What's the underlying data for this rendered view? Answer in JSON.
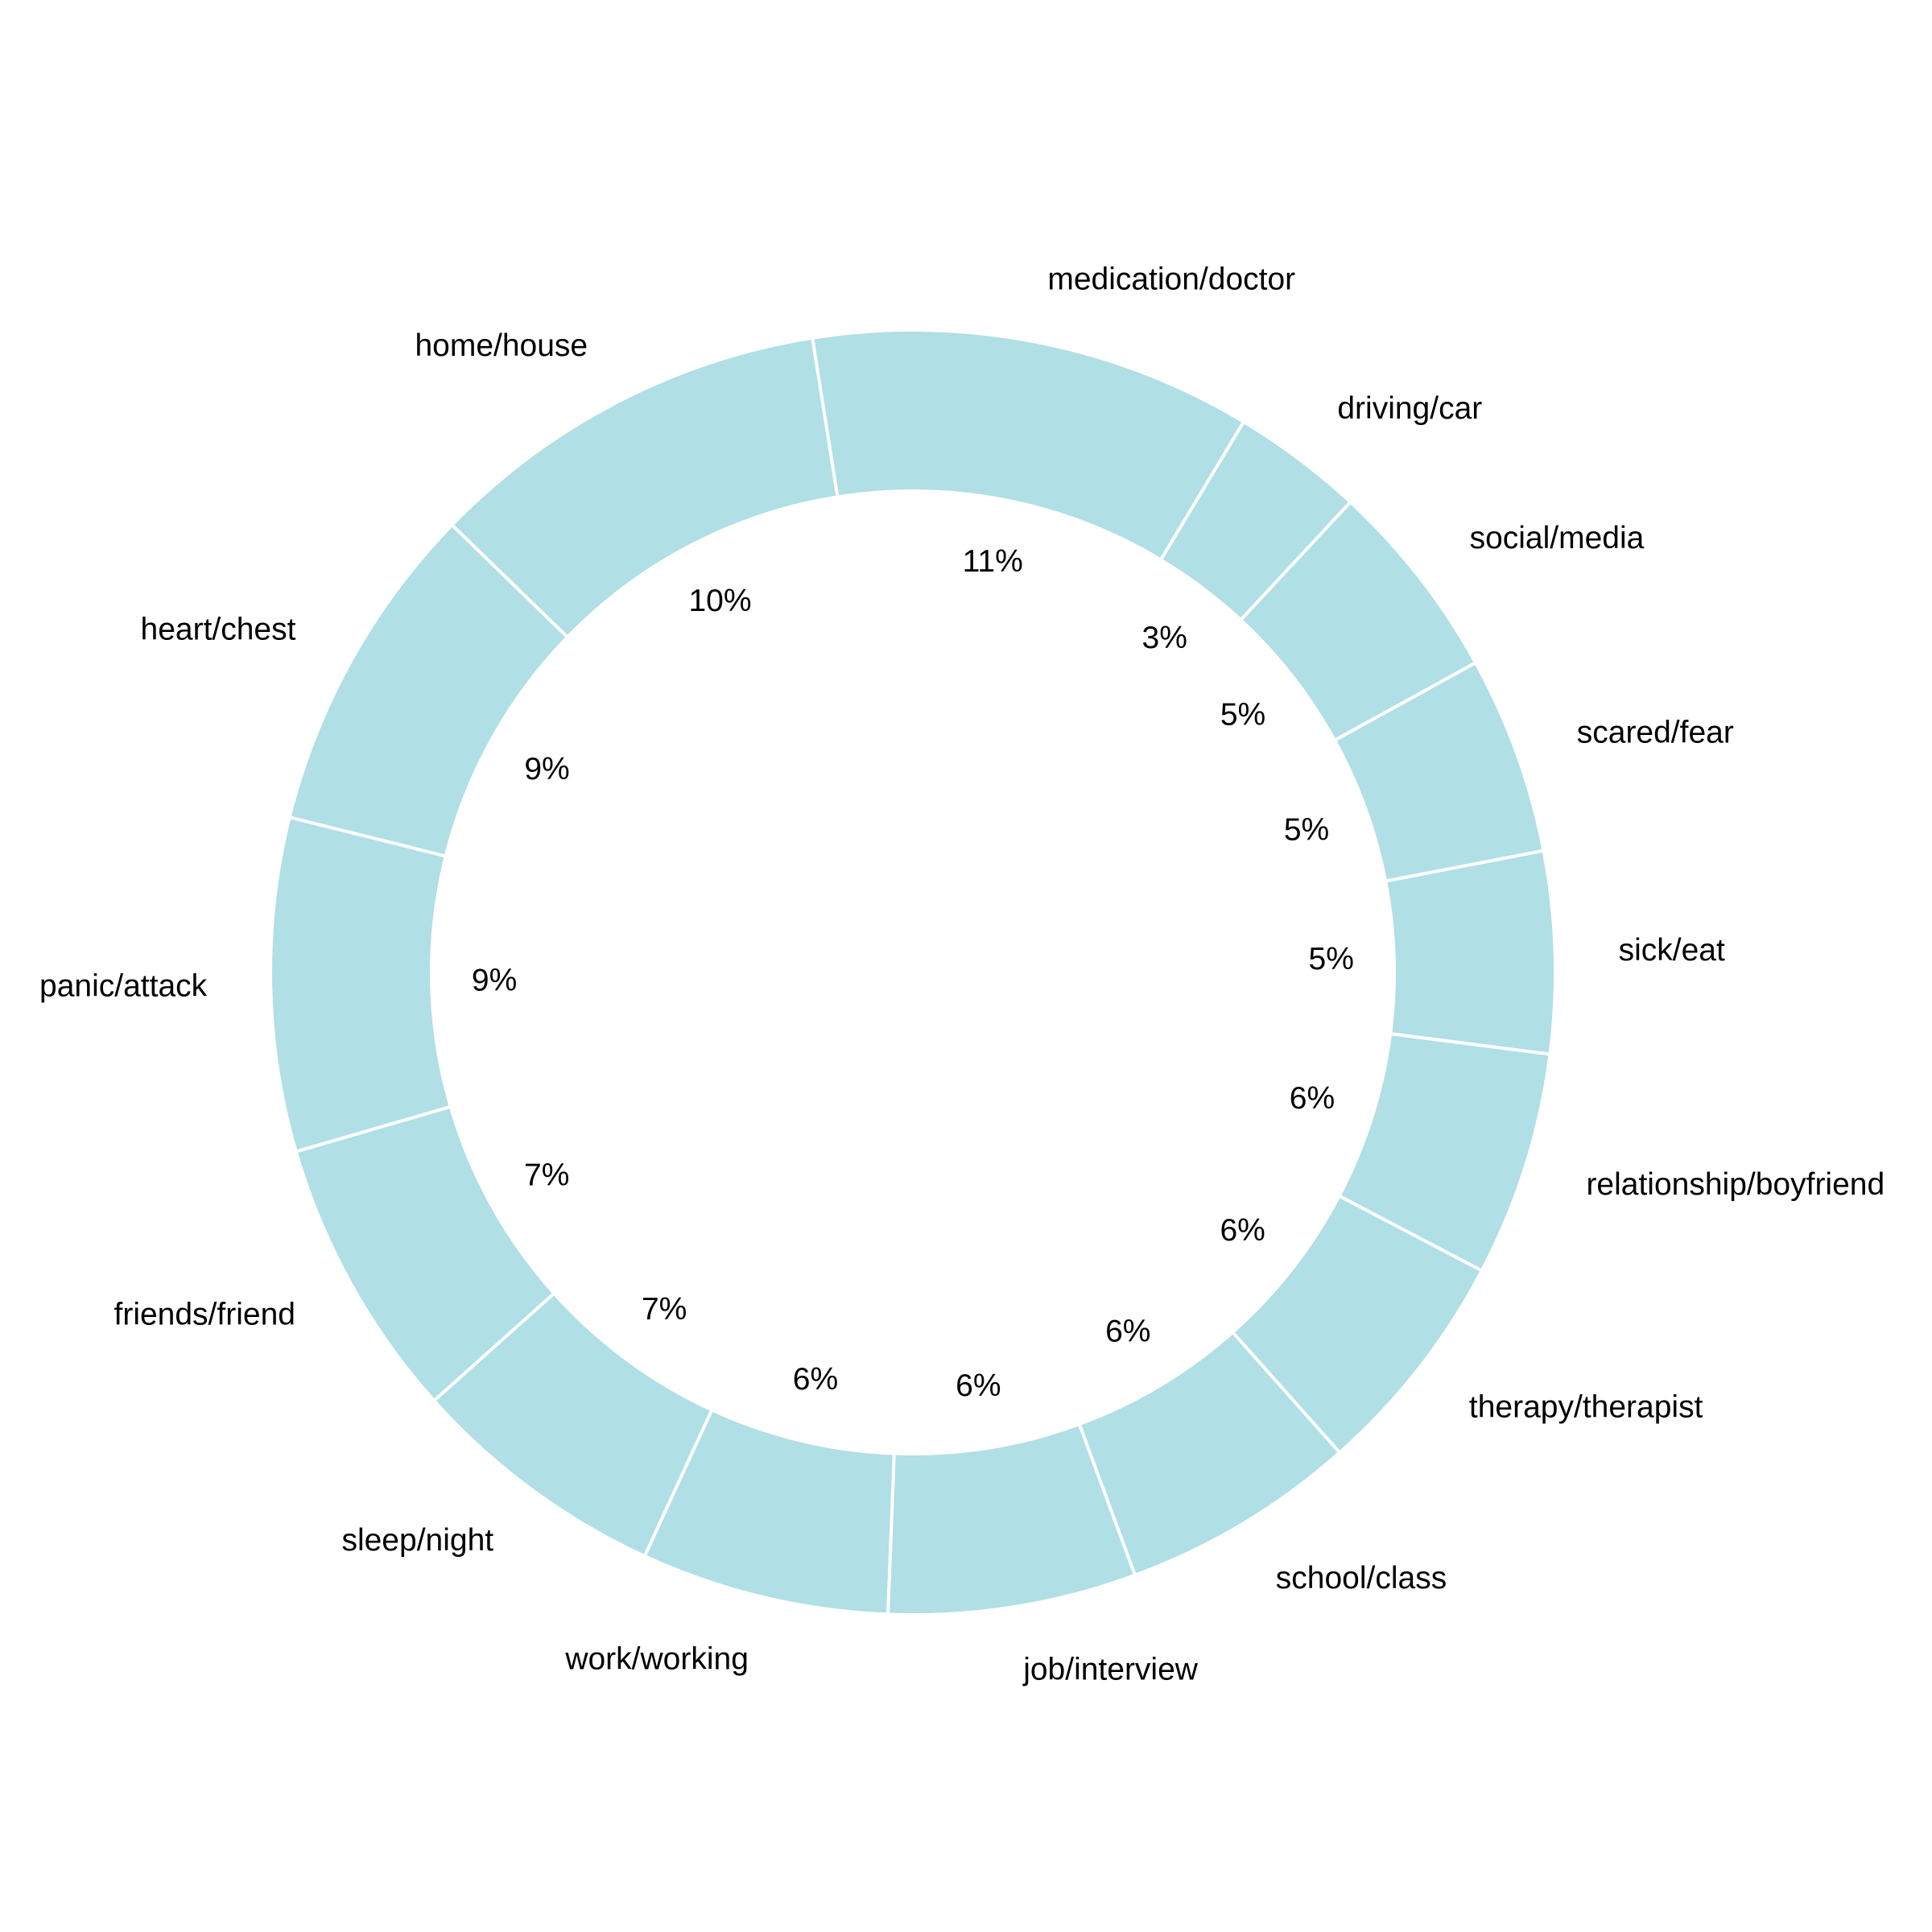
{
  "chart_data": {
    "type": "pie",
    "variant": "donut",
    "title": "",
    "start_angle_deg": 99,
    "direction": "clockwise",
    "ring_color": "#b0dfe5",
    "edge_color": "#ffffff",
    "categories": [
      "medication/doctor",
      "driving/car",
      "social/media",
      "scared/fear",
      "sick/eat",
      "relationship/boyfriend",
      "therapy/therapist",
      "school/class",
      "job/interview",
      "work/working",
      "sleep/night",
      "friends/friend",
      "panic/attack",
      "heart/chest",
      "home/house"
    ],
    "values": [
      11.4,
      3.4,
      5.2,
      5.1,
      5.2,
      5.8,
      5.9,
      6.1,
      6.4,
      6.4,
      6.7,
      7.3,
      8.6,
      8.6,
      10.5
    ],
    "value_labels": [
      "11%",
      "3%",
      "5%",
      "5%",
      "5%",
      "6%",
      "6%",
      "6%",
      "6%",
      "6%",
      "7%",
      "7%",
      "9%",
      "9%",
      "10%"
    ]
  }
}
